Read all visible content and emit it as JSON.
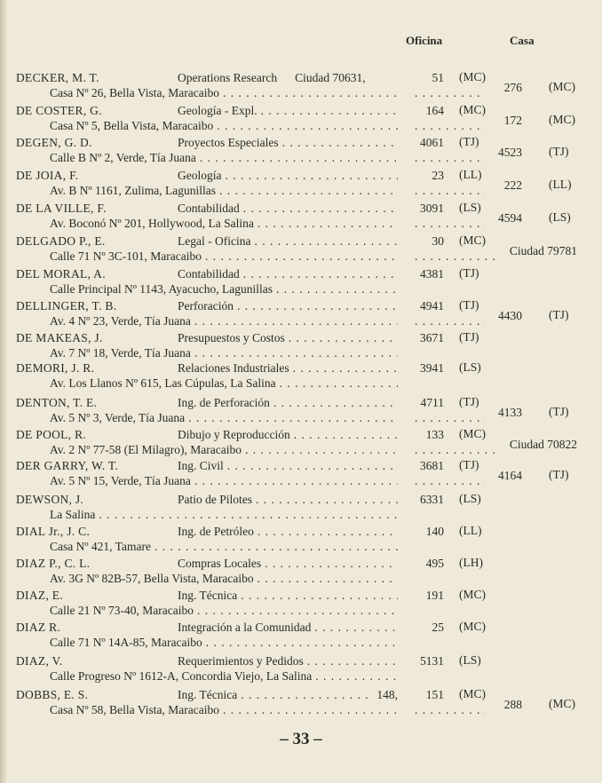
{
  "header": {
    "oficina": "Oficina",
    "casa": "Casa"
  },
  "entries": [
    {
      "name": "DECKER, M. T.",
      "dept": "Operations Research",
      "extra": "Ciudad 70631,",
      "office_num": "51",
      "office_loc": "(MC)",
      "address": "Casa Nº 26, Bella Vista, Maracaibo",
      "casa_num": "276",
      "casa_loc": "(MC)"
    },
    {
      "name": "DE COSTER, G.",
      "dept": "Geología - Expl.",
      "office_num": "164",
      "office_loc": "(MC)",
      "address": "Casa Nº 5, Bella Vista, Maracaibo",
      "casa_num": "172",
      "casa_loc": "(MC)"
    },
    {
      "name": "DEGEN, G. D.",
      "dept": "Proyectos Especiales",
      "office_num": "4061",
      "office_loc": "(TJ)",
      "address": "Calle B Nº 2, Verde, Tía Juana",
      "casa_num": "4523",
      "casa_loc": "(TJ)"
    },
    {
      "name": "DE JOIA, F.",
      "dept": "Geología",
      "office_num": "23",
      "office_loc": "(LL)",
      "address": "Av. B Nº 1161, Zulima, Lagunillas",
      "casa_num": "222",
      "casa_loc": "(LL)"
    },
    {
      "name": "DE LA VILLE, F.",
      "dept": "Contabilidad",
      "office_num": "3091",
      "office_loc": "(LS)",
      "address": "Av. Boconó Nº 201, Hollywood, La Salina",
      "casa_num": "4594",
      "casa_loc": "(LS)"
    },
    {
      "name": "DELGADO P., E.",
      "dept": "Legal - Oficina",
      "office_num": "30",
      "office_loc": "(MC)",
      "address": "Calle 71 Nº 3C-101, Maracaibo",
      "casa_num": "Ciudad 79781",
      "casa_loc": ""
    },
    {
      "name": "DEL MORAL, A.",
      "dept": "Contabilidad",
      "office_num": "4381",
      "office_loc": "(TJ)",
      "address": "Calle Principal Nº 1143, Ayacucho, Lagunillas"
    },
    {
      "name": "DELLINGER, T. B.",
      "dept": "Perforación",
      "office_num": "4941",
      "office_loc": "(TJ)",
      "address": "Av. 4 Nº 23, Verde, Tía Juana",
      "casa_num": "4430",
      "casa_loc": "(TJ)"
    },
    {
      "name": "DE MAKEAS, J.",
      "dept": "Presupuestos y Costos",
      "office_num": "3671",
      "office_loc": "(TJ)",
      "address": "Av. 7 Nº 18, Verde, Tía Juana"
    },
    {
      "name": "DEMORI, J. R.",
      "dept": "Relaciones Industriales",
      "office_num": "3941",
      "office_loc": "(LS)",
      "address": "Av. Los Llanos Nº 615, Las Cúpulas, La Salina"
    },
    {
      "name": "DENTON, T. E.",
      "dept": "Ing. de Perforación",
      "office_num": "4711",
      "office_loc": "(TJ)",
      "address": "Av. 5 Nº 3, Verde, Tía Juana",
      "casa_num": "4133",
      "casa_loc": "(TJ)"
    },
    {
      "name": "DE POOL, R.",
      "dept": "Dibujo y Reproducción",
      "office_num": "133",
      "office_loc": "(MC)",
      "address": "Av. 2 Nº 77-58 (El Milagro), Maracaibo",
      "casa_num": "Ciudad 70822",
      "casa_loc": ""
    },
    {
      "name": "DER GARRY, W. T.",
      "dept": "Ing. Civil",
      "office_num": "3681",
      "office_loc": "(TJ)",
      "address": "Av. 5 Nº 15, Verde, Tía Juana",
      "casa_num": "4164",
      "casa_loc": "(TJ)"
    },
    {
      "name": "DEWSON, J.",
      "dept": "Patio de Pilotes",
      "office_num": "6331",
      "office_loc": "(LS)",
      "address": "La Salina"
    },
    {
      "name": "DIAL Jr., J. C.",
      "dept": "Ing. de Petróleo",
      "office_num": "140",
      "office_loc": "(LL)",
      "address": "Casa Nº 421, Tamare"
    },
    {
      "name": "DIAZ P., C. L.",
      "dept": "Compras Locales",
      "office_num": "495",
      "office_loc": "(LH)",
      "address": "Av. 3G Nº 82B-57, Bella Vista, Maracaibo"
    },
    {
      "name": "DIAZ, E.",
      "dept": "Ing. Técnica",
      "office_num": "191",
      "office_loc": "(MC)",
      "address": "Calle 21 Nº 73-40, Maracaibo"
    },
    {
      "name": "DIAZ R.",
      "dept": "Integración a la Comunidad",
      "office_num": "25",
      "office_loc": "(MC)",
      "address": "Calle 71 Nº 14A-85, Maracaibo"
    },
    {
      "name": "DIAZ, V.",
      "dept": "Requerimientos y Pedidos",
      "office_num": "5131",
      "office_loc": "(LS)",
      "address": "Calle Progreso Nº 1612-A, Concordia Viejo, La Salina"
    },
    {
      "name": "DOBBS, E. S.",
      "dept": "Ing. Técnica",
      "extra": "148,",
      "extra_after_leader": true,
      "office_num": "151",
      "office_loc": "(MC)",
      "address": "Casa Nº 58, Bella Vista, Maracaibo",
      "casa_num": "288",
      "casa_loc": "(MC)"
    }
  ],
  "page_number": "– 33 –"
}
